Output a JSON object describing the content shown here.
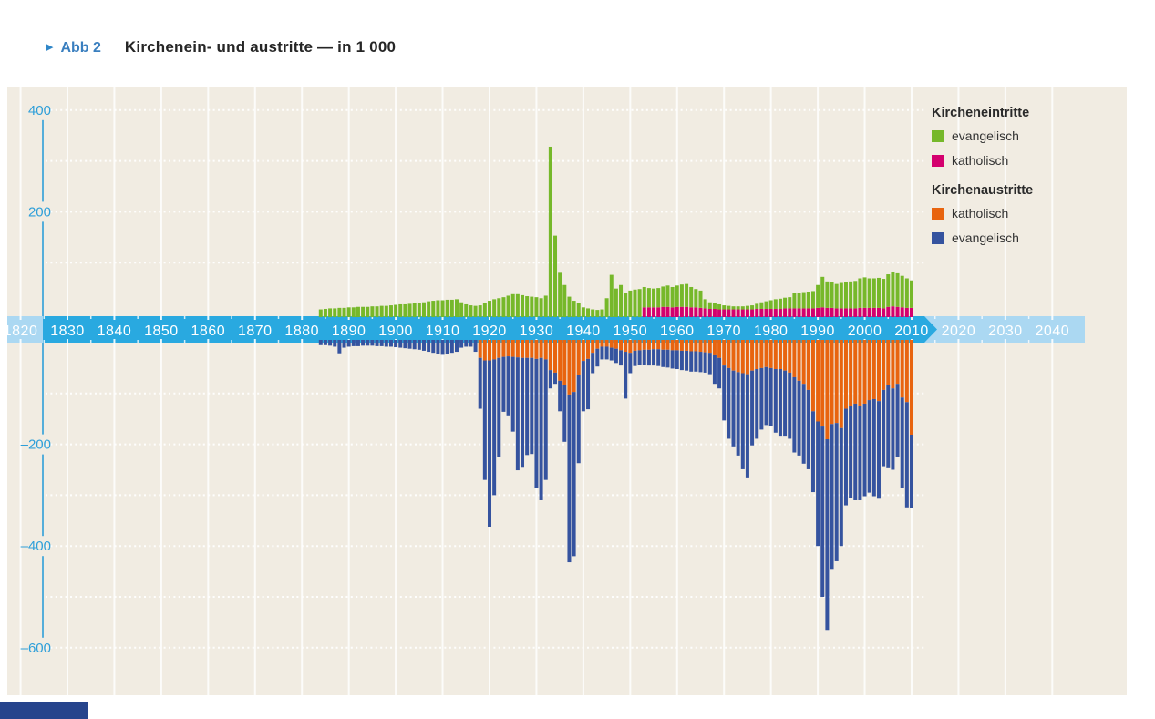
{
  "header": {
    "marker": "▶",
    "figure_label": "Abb 2",
    "title": "Kirchenein- und austritte — in 1 000"
  },
  "legend": {
    "entries_title": "Kircheneintritte",
    "exits_title": "Kirchenaustritte",
    "entries": [
      {
        "label": "evangelisch",
        "color": "#76b82a"
      },
      {
        "label": "katholisch",
        "color": "#d4006e"
      }
    ],
    "exits": [
      {
        "label": "katholisch",
        "color": "#e8640f"
      },
      {
        "label": "evangelisch",
        "color": "#35539f"
      }
    ]
  },
  "colors": {
    "panel_bg": "#f1ece2",
    "band_dark": "#29a9e0",
    "band_light": "#abd8f2",
    "axis_blue": "#2e9fd9",
    "grid_white": "#ffffff",
    "corner_bar": "#26448c"
  },
  "axis": {
    "y_tick_labels": [
      {
        "text": "400",
        "value": 400
      },
      {
        "text": "200",
        "value": 200
      },
      {
        "text": "–200",
        "value": -200
      },
      {
        "text": "–400",
        "value": -400
      },
      {
        "text": "–600",
        "value": -600
      }
    ],
    "y_gridline_values": [
      400,
      300,
      200,
      100,
      -100,
      -200,
      -300,
      -400,
      -500,
      -600
    ],
    "timeline_decades": [
      1820,
      1830,
      1840,
      1850,
      1860,
      1870,
      1880,
      1890,
      1900,
      1910,
      1920,
      1930,
      1940,
      1950,
      1960,
      1970,
      1980,
      1990,
      2000,
      2010,
      2020,
      2030,
      2040
    ]
  },
  "chart_data": {
    "type": "bar",
    "title": "Kirchenein- und austritte — in 1 000",
    "unit": "in 1 000",
    "stacking": "diverging stacked bars, entries above axis, exits below",
    "grid": true,
    "legend_position": "right",
    "ylim": [
      -620,
      420
    ],
    "x_note": "consecutive years 1884–2010; timeline band shown 1820–2040",
    "timeline": {
      "full_range": [
        1820,
        2045
      ],
      "highlight_range": [
        1830,
        2012
      ],
      "label_step": 10
    },
    "series": [
      {
        "name": "Kircheneintritte evangelisch",
        "direction": "up",
        "stack_level": 1,
        "color": "#76b82a",
        "start_year": 1884,
        "values": [
          8,
          9,
          10,
          10,
          11,
          11,
          12,
          12,
          13,
          13,
          13,
          14,
          14,
          15,
          15,
          16,
          17,
          18,
          18,
          19,
          20,
          21,
          22,
          24,
          25,
          26,
          26,
          27,
          27,
          28,
          22,
          18,
          16,
          15,
          16,
          20,
          25,
          28,
          30,
          32,
          35,
          38,
          38,
          36,
          34,
          33,
          32,
          30,
          35,
          328,
          153,
          80,
          56,
          33,
          25,
          20,
          12,
          10,
          8,
          7,
          8,
          30,
          76,
          49,
          56,
          40,
          45,
          47,
          48,
          40,
          38,
          37,
          38,
          40,
          42,
          40,
          42,
          44,
          45,
          40,
          36,
          34,
          18,
          13,
          11,
          10,
          8,
          7,
          6,
          6,
          6,
          7,
          8,
          10,
          13,
          15,
          17,
          19,
          20,
          21,
          22,
          30,
          31,
          32,
          33,
          34,
          45,
          60,
          52,
          50,
          48,
          50,
          52,
          53,
          54,
          58,
          60,
          58,
          58,
          59,
          58,
          64,
          68,
          66,
          62,
          58,
          54
        ]
      },
      {
        "name": "Kircheneintritte katholisch",
        "direction": "up",
        "stack_level": 0,
        "color": "#d4006e",
        "start_year": 1953,
        "values": [
          12,
          12,
          12,
          12,
          13,
          13,
          12,
          13,
          13,
          13,
          12,
          12,
          11,
          10,
          9,
          9,
          8,
          8,
          8,
          8,
          8,
          8,
          8,
          8,
          9,
          9,
          9,
          9,
          9,
          9,
          10,
          10,
          10,
          10,
          10,
          10,
          10,
          11,
          12,
          11,
          11,
          10,
          10,
          10,
          10,
          10,
          11,
          11,
          11,
          11,
          11,
          10,
          13,
          14,
          13,
          12,
          11,
          11
        ]
      },
      {
        "name": "Kirchenaustritte katholisch",
        "direction": "down",
        "stack_level": 0,
        "color": "#e8640f",
        "start_year": 1918,
        "values": [
          30,
          35,
          35,
          33,
          30,
          28,
          27,
          28,
          29,
          30,
          30,
          30,
          32,
          30,
          33,
          54,
          59,
          75,
          84,
          102,
          97,
          63,
          36,
          32,
          20,
          12,
          8,
          8,
          10,
          12,
          15,
          18,
          20,
          16,
          15,
          14,
          14,
          13,
          13,
          14,
          14,
          15,
          15,
          16,
          16,
          17,
          17,
          18,
          19,
          20,
          25,
          30,
          45,
          50,
          55,
          58,
          60,
          62,
          55,
          52,
          50,
          48,
          50,
          52,
          52,
          55,
          59,
          68,
          75,
          81,
          93,
          135,
          155,
          165,
          190,
          160,
          158,
          168,
          130,
          125,
          120,
          125,
          120,
          113,
          111,
          115,
          93,
          84,
          90,
          81,
          108,
          117,
          181
        ]
      },
      {
        "name": "Kirchenaustritte evangelisch",
        "direction": "down",
        "stack_level": 1,
        "color": "#35539f",
        "start_year": 1884,
        "values": [
          5,
          5,
          6,
          8,
          21,
          10,
          8,
          7,
          7,
          6,
          6,
          6,
          7,
          7,
          8,
          8,
          9,
          10,
          11,
          12,
          13,
          14,
          16,
          18,
          20,
          22,
          24,
          22,
          20,
          18,
          10,
          8,
          8,
          18,
          100,
          235,
          327,
          267,
          195,
          108,
          116,
          147,
          222,
          216,
          191,
          189,
          253,
          280,
          237,
          36,
          22,
          60,
          111,
          330,
          323,
          174,
          99,
          99,
          40,
          35,
          25,
          25,
          25,
          28,
          30,
          92,
          40,
          30,
          28,
          30,
          31,
          32,
          33,
          34,
          35,
          36,
          37,
          38,
          39,
          40,
          40,
          40,
          40,
          42,
          56,
          60,
          108,
          139,
          149,
          164,
          189,
          203,
          147,
          137,
          121,
          114,
          114,
          125,
          131,
          128,
          130,
          148,
          147,
          157,
          156,
          159,
          245,
          335,
          375,
          285,
          272,
          232,
          190,
          180,
          190,
          185,
          182,
          182,
          191,
          192,
          150,
          163,
          160,
          144,
          177,
          207,
          145
        ]
      }
    ]
  }
}
